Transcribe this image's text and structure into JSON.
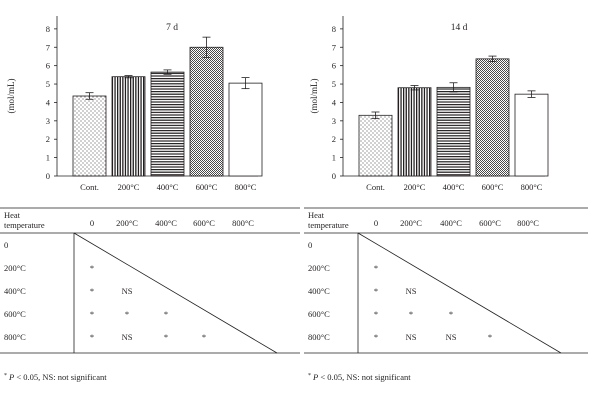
{
  "chart_data": [
    {
      "type": "bar",
      "title": "7 d",
      "ylabel": "(mol/mL)",
      "categories": [
        "Cont.",
        "200°C",
        "400°C",
        "600°C",
        "800°C"
      ],
      "values": [
        4.35,
        5.4,
        5.65,
        7.0,
        5.05
      ],
      "errors": [
        0.18,
        0.06,
        0.12,
        0.55,
        0.3
      ],
      "yticks": [
        "0",
        "1",
        "2",
        "3",
        "4",
        "5",
        "6",
        "7",
        "8"
      ],
      "ylim": [
        0,
        8.7
      ],
      "patterns": [
        "dots",
        "vertical",
        "horizontal",
        "crosshatch",
        "none"
      ],
      "grid": false
    },
    {
      "type": "bar",
      "title": "14 d",
      "ylabel": "(mol/mL)",
      "categories": [
        "Cont.",
        "200°C",
        "400°C",
        "600°C",
        "800°C"
      ],
      "values": [
        3.3,
        4.8,
        4.82,
        6.37,
        4.45
      ],
      "errors": [
        0.18,
        0.12,
        0.25,
        0.15,
        0.18
      ],
      "yticks": [
        "0",
        "1",
        "2",
        "3",
        "4",
        "5",
        "6",
        "7",
        "8"
      ],
      "ylim": [
        0,
        8.7
      ],
      "patterns": [
        "dots",
        "vertical",
        "horizontal",
        "crosshatch",
        "none"
      ],
      "grid": false
    }
  ],
  "tables": [
    {
      "header_label": [
        "Heat",
        "temperature"
      ],
      "columns": [
        "0",
        "200°C",
        "400°C",
        "600°C",
        "800°C"
      ],
      "row_labels": [
        "0",
        "200°C",
        "400°C",
        "600°C",
        "800°C"
      ],
      "cells": [
        [],
        [
          "*"
        ],
        [
          "*",
          "NS"
        ],
        [
          "*",
          "*",
          "*"
        ],
        [
          "*",
          "NS",
          "*",
          "*"
        ]
      ],
      "footnote": "* P < 0.05, NS: not significant"
    },
    {
      "header_label": [
        "Heat",
        "temperature"
      ],
      "columns": [
        "0",
        "200°C",
        "400°C",
        "600°C",
        "800°C"
      ],
      "row_labels": [
        "0",
        "200°C",
        "400°C",
        "600°C",
        "800°C"
      ],
      "cells": [
        [],
        [
          "*"
        ],
        [
          "*",
          "NS"
        ],
        [
          "*",
          "*",
          "*"
        ],
        [
          "*",
          "NS",
          "NS",
          "*"
        ]
      ],
      "footnote": "* P < 0.05, NS: not significant"
    }
  ]
}
